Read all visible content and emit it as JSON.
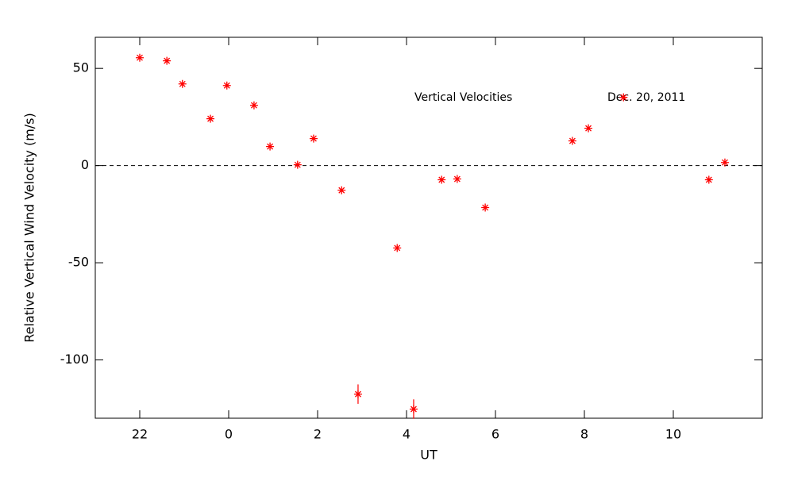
{
  "chart_data": {
    "type": "scatter",
    "title": "Vertical Velocities",
    "annotation": "Dec. 20, 2011",
    "x_label": "UT",
    "y_label": "Relative Vertical Wind Velocity (m/s)",
    "xlim": [
      -3,
      12
    ],
    "ylim": [
      -130,
      66
    ],
    "xticks": [
      {
        "value": -2,
        "label": "22"
      },
      0,
      2,
      4,
      6,
      8,
      10
    ],
    "yticks": [
      -100,
      -50,
      0,
      50
    ],
    "reference_line": 0,
    "series": [
      {
        "color": "#ff0000",
        "x": [
          -2.0,
          -1.39,
          -1.04,
          -0.41,
          -0.04,
          0.57,
          0.93,
          1.55,
          1.91,
          2.54,
          2.91,
          3.79,
          4.16,
          4.79,
          5.14,
          5.77,
          7.73,
          8.09,
          8.88,
          10.8,
          11.16
        ],
        "values": [
          55.5,
          53.9,
          42,
          24.1,
          41.2,
          31,
          9.8,
          0.4,
          13.9,
          -12.7,
          -117.6,
          -42.4,
          -125.3,
          -7.3,
          -6.9,
          -21.6,
          12.7,
          19.2,
          35.1,
          -7.3,
          1.6
        ],
        "errors": [
          null,
          null,
          null,
          null,
          null,
          null,
          null,
          null,
          null,
          null,
          5,
          null,
          5,
          null,
          null,
          null,
          null,
          null,
          null,
          null,
          null
        ]
      }
    ]
  }
}
